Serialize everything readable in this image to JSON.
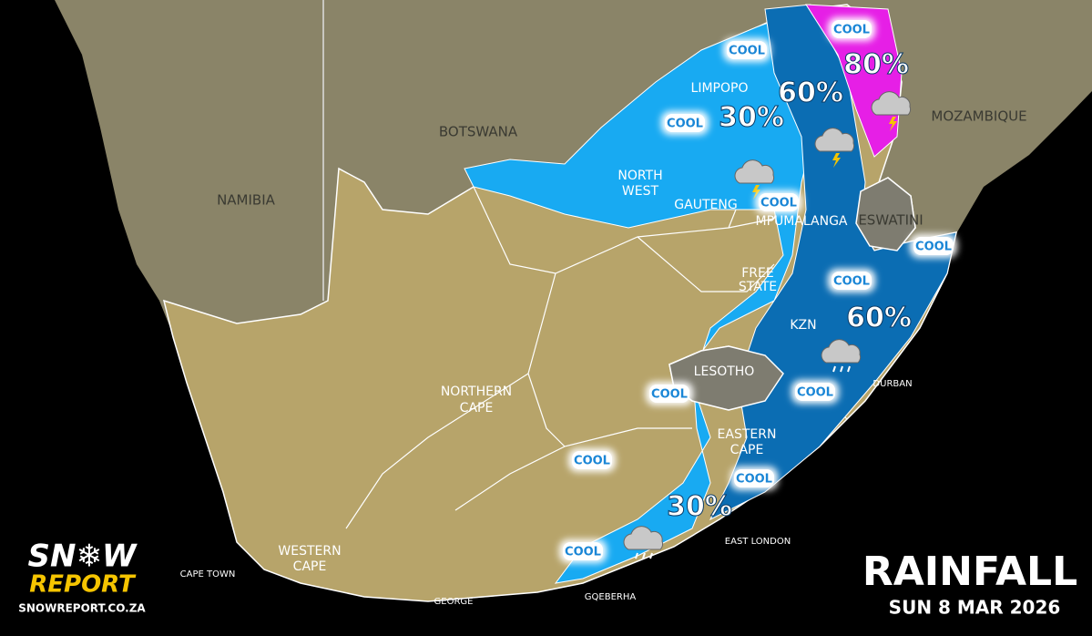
{
  "header": {
    "title": "RAINFALL",
    "date": "SUN 8 MAR 2026"
  },
  "logo": {
    "line1": "SN❄W",
    "line2": "REPORT",
    "url": "SNOWREPORT.CO.ZA"
  },
  "countries": [
    "NAMIBIA",
    "BOTSWANA",
    "MOZAMBIQUE",
    "ESWATINI"
  ],
  "provinces": [
    "LIMPOPO",
    "NORTH",
    "WEST",
    "GAUTENG",
    "MPUMALANGA",
    "FREE",
    "STATE",
    "KZN",
    "LESOTHO",
    "NORTHERN",
    "CAPE",
    "EASTERN",
    "CAPE",
    "WESTERN",
    "CAPE"
  ],
  "cities": [
    "CAPE TOWN",
    "GEORGE",
    "GQEBERHA",
    "EAST LONDON",
    "DURBAN"
  ],
  "rain_chances": [
    "30%",
    "60%",
    "80%",
    "60%",
    "30%"
  ],
  "temperature_tags": [
    "COOL",
    "COOL",
    "COOL",
    "COOL",
    "COOL",
    "COOL",
    "COOL",
    "COOL",
    "COOL",
    "COOL",
    "COOL"
  ]
}
